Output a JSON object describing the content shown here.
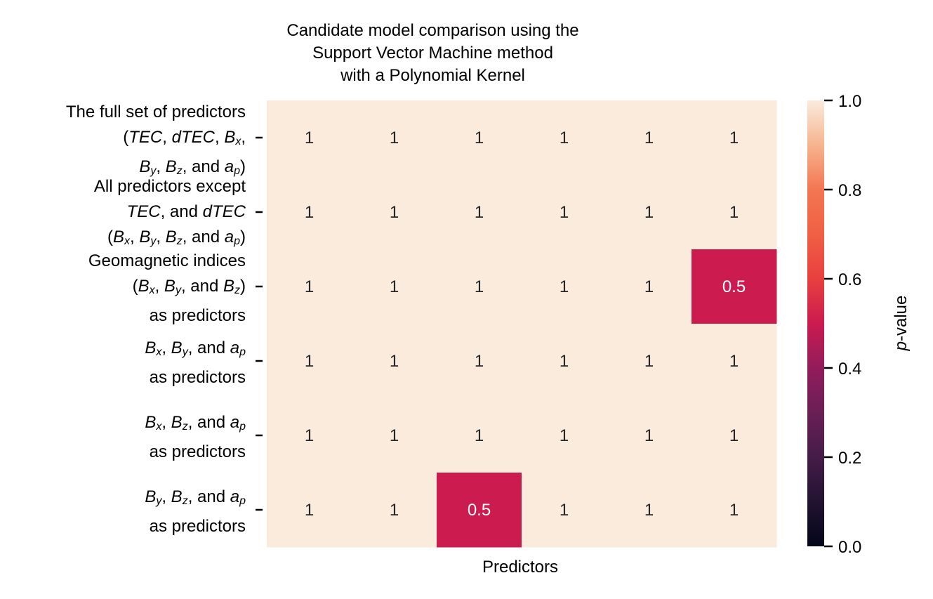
{
  "chart_data": {
    "type": "heatmap",
    "title": [
      "Candidate model comparison using the",
      "Support Vector Machine method",
      "with a Polynomial Kernel"
    ],
    "xlabel": "Predictors",
    "colorbar_label": "p-value",
    "colorbar_ticks": [
      "0.0",
      "0.2",
      "0.4",
      "0.6",
      "0.8",
      "1.0"
    ],
    "colorbar_range": [
      0,
      1
    ],
    "colormap": "rocket",
    "rows": [
      {
        "label_lines": [
          "The full set of predictors",
          "(<i>TEC</i>, <i>dTEC</i>, <i>B</i><sub><i>x</i></sub>,",
          "<i>B</i><sub><i>y</i></sub>, <i>B</i><sub><i>z</i></sub>, and <i>a</i><sub><i>p</i></sub>)"
        ]
      },
      {
        "label_lines": [
          "All predictors except",
          "<i>TEC</i>, and <i>dTEC</i>",
          "(<i>B</i><sub><i>x</i></sub>, <i>B</i><sub><i>y</i></sub>, <i>B</i><sub><i>z</i></sub>, and <i>a</i><sub><i>p</i></sub>)"
        ]
      },
      {
        "label_lines": [
          "Geomagnetic indices",
          "(<i>B</i><sub><i>x</i></sub>, <i>B</i><sub><i>y</i></sub>, and <i>B</i><sub><i>z</i></sub>)",
          "as predictors"
        ]
      },
      {
        "label_lines": [
          "<i>B</i><sub><i>x</i></sub>, <i>B</i><sub><i>y</i></sub>, and <i>a</i><sub><i>p</i></sub>",
          "as predictors"
        ]
      },
      {
        "label_lines": [
          "<i>B</i><sub><i>x</i></sub>, <i>B</i><sub><i>z</i></sub>, and <i>a</i><sub><i>p</i></sub>",
          "as predictors"
        ]
      },
      {
        "label_lines": [
          "<i>B</i><sub><i>y</i></sub>, <i>B</i><sub><i>z</i></sub>, and <i>a</i><sub><i>p</i></sub>",
          "as predictors"
        ]
      }
    ],
    "values": [
      [
        1,
        1,
        1,
        1,
        1,
        1
      ],
      [
        1,
        1,
        1,
        1,
        1,
        1
      ],
      [
        1,
        1,
        1,
        1,
        1,
        0.5
      ],
      [
        1,
        1,
        1,
        1,
        1,
        1
      ],
      [
        1,
        1,
        1,
        1,
        1,
        1
      ],
      [
        1,
        1,
        0.5,
        1,
        1,
        1
      ]
    ]
  }
}
